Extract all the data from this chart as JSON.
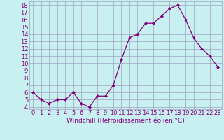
{
  "x": [
    0,
    1,
    2,
    3,
    4,
    5,
    6,
    7,
    8,
    9,
    10,
    11,
    12,
    13,
    14,
    15,
    16,
    17,
    18,
    19,
    20,
    21,
    22,
    23
  ],
  "y": [
    6.0,
    5.0,
    4.5,
    5.0,
    5.0,
    6.0,
    4.5,
    4.0,
    5.5,
    5.5,
    7.0,
    10.5,
    13.5,
    14.0,
    15.5,
    15.5,
    16.5,
    17.5,
    18.0,
    16.0,
    13.5,
    12.0,
    11.0,
    9.5
  ],
  "line_color": "#800080",
  "marker_color": "#800080",
  "bg_color": "#c8f0f0",
  "grid_color": "#a0a0c0",
  "xlabel": "Windchill (Refroidissement éolien,°C)",
  "yticks": [
    4,
    5,
    6,
    7,
    8,
    9,
    10,
    11,
    12,
    13,
    14,
    15,
    16,
    17,
    18
  ],
  "ylim": [
    3.7,
    18.5
  ],
  "xlim": [
    -0.5,
    23.5
  ],
  "xlabel_color": "#800080",
  "xlabel_fontsize": 6.5,
  "tick_fontsize": 6.0,
  "tick_color": "#800080"
}
